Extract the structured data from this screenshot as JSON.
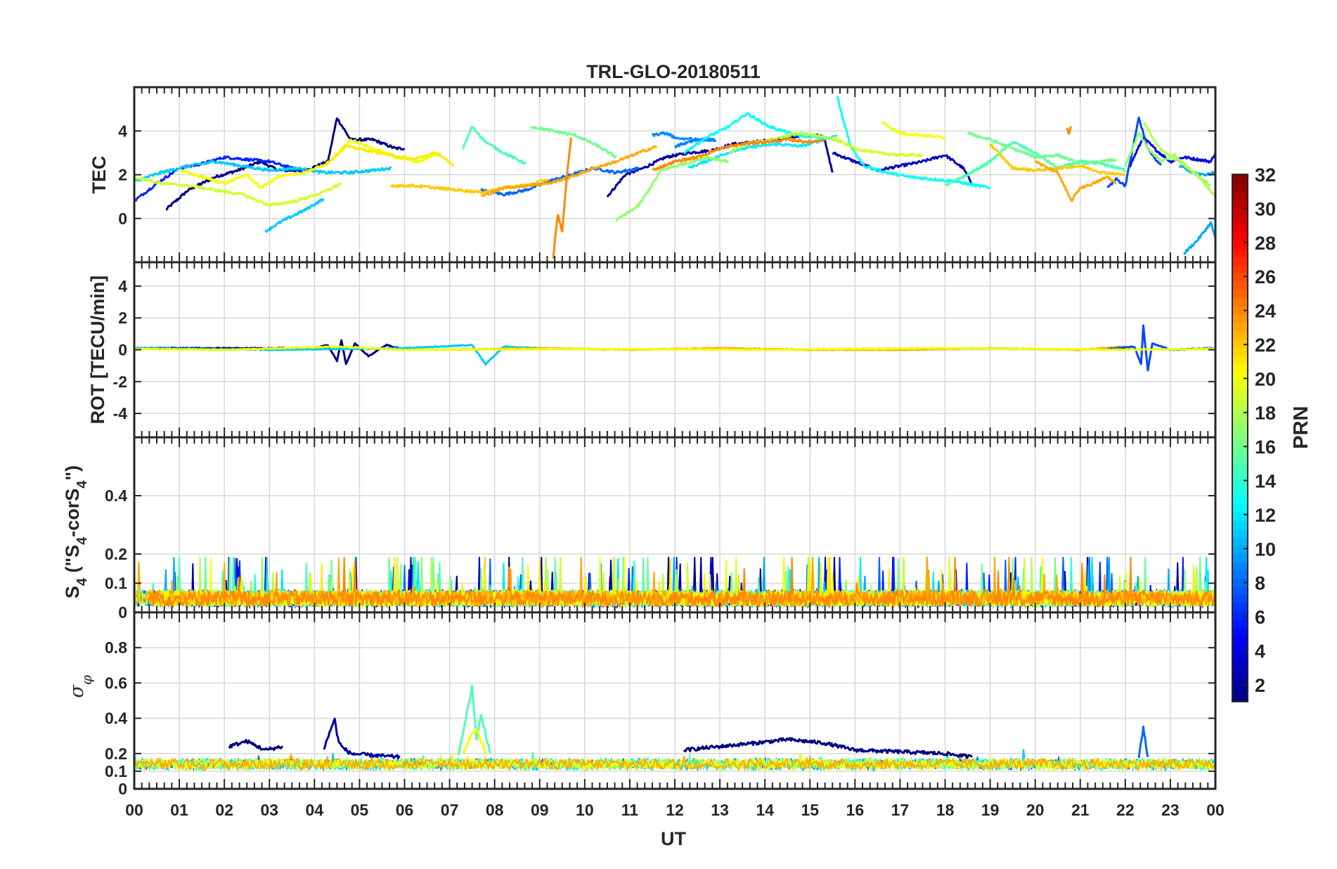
{
  "chart_data": {
    "type": "line",
    "title": "TRL-GLO-20180511",
    "xlabel": "UT",
    "x_ticks": [
      "00",
      "01",
      "02",
      "03",
      "04",
      "05",
      "06",
      "07",
      "08",
      "09",
      "10",
      "11",
      "12",
      "13",
      "14",
      "15",
      "16",
      "17",
      "18",
      "19",
      "20",
      "21",
      "22",
      "23",
      "00"
    ],
    "xlim_hours": [
      0,
      24
    ],
    "grid": true,
    "colorbar": {
      "label": "PRN",
      "colormap": "jet",
      "range": [
        1,
        32
      ],
      "ticks": [
        "2",
        "4",
        "6",
        "8",
        "10",
        "12",
        "14",
        "16",
        "18",
        "20",
        "22",
        "24",
        "26",
        "28",
        "30",
        "32"
      ]
    },
    "panels": [
      {
        "ylabel": "TEC",
        "ylim": [
          -2,
          6
        ],
        "yticks": [
          "0",
          "2",
          "4"
        ],
        "series": [
          {
            "prn": 1,
            "x": [
              0.7,
              1.2,
              1.8,
              2.3,
              2.8,
              3.2,
              3.8,
              4.3,
              4.5,
              4.8,
              5.3,
              5.8,
              6.0
            ],
            "y": [
              0.4,
              1.3,
              1.9,
              2.2,
              2.6,
              2.2,
              2.2,
              2.6,
              4.6,
              3.6,
              3.6,
              3.2,
              3.2
            ]
          },
          {
            "prn": 2,
            "x": [
              10.5,
              10.9,
              11.3,
              11.8,
              12.3,
              12.8,
              13.3,
              13.8,
              14.3,
              14.8,
              15.3,
              15.5
            ],
            "y": [
              1.0,
              2.0,
              2.3,
              2.8,
              3.0,
              3.1,
              3.4,
              3.5,
              3.6,
              3.8,
              3.8,
              2.1
            ]
          },
          {
            "prn": 3,
            "x": [
              15.5,
              16.0,
              16.5,
              17.0,
              17.5,
              18.0,
              18.4,
              18.6
            ],
            "y": [
              3.0,
              2.6,
              2.2,
              2.4,
              2.6,
              2.9,
              2.3,
              1.6
            ]
          },
          {
            "prn": 4,
            "x": [
              22.1,
              22.4,
              22.7,
              23.0,
              23.3,
              23.6,
              23.9,
              24.0
            ],
            "y": [
              2.4,
              3.7,
              3.1,
              2.6,
              2.8,
              2.7,
              2.6,
              3.0
            ]
          },
          {
            "prn": 6,
            "x": [
              0.0,
              0.5,
              1.0,
              1.5,
              2.0,
              2.5,
              3.0,
              3.5,
              3.8
            ],
            "y": [
              0.8,
              1.6,
              2.3,
              2.5,
              2.8,
              2.7,
              2.6,
              2.3,
              2.1
            ]
          },
          {
            "prn": 7,
            "x": [
              21.6,
              21.8,
              22.0,
              22.3,
              22.5,
              22.7,
              22.8
            ],
            "y": [
              1.4,
              1.8,
              1.5,
              4.6,
              3.2,
              2.6,
              2.5
            ]
          },
          {
            "prn": 8,
            "x": [
              7.7,
              8.2,
              8.7,
              9.2,
              9.7,
              10.2,
              10.7,
              11.2
            ],
            "y": [
              1.3,
              1.1,
              1.3,
              1.7,
              2.0,
              2.3,
              2.1,
              2.3
            ]
          },
          {
            "prn": 9,
            "x": [
              12.0,
              12.5,
              12.9,
              12.5,
              12.0,
              11.8,
              11.5
            ],
            "y": [
              3.3,
              3.6,
              3.6,
              3.6,
              3.7,
              3.9,
              3.8
            ]
          },
          {
            "prn": 10,
            "x": [
              23.2,
              23.5,
              23.8,
              24.0
            ],
            "y": [
              2.4,
              2.1,
              2.0,
              2.1
            ]
          },
          {
            "prn": 10,
            "x": [
              23.3,
              23.6,
              23.9,
              24.0
            ],
            "y": [
              -1.6,
              -1.0,
              -0.2,
              -0.9
            ]
          },
          {
            "prn": 11,
            "x": [
              0.0,
              0.6,
              1.2,
              1.8,
              2.4,
              3.0,
              3.6,
              4.2,
              4.8,
              5.3,
              5.7
            ],
            "y": [
              1.7,
              2.1,
              2.4,
              2.6,
              2.4,
              2.2,
              2.3,
              2.1,
              2.1,
              2.2,
              2.3
            ]
          },
          {
            "prn": 11,
            "x": [
              2.9,
              3.3,
              3.8,
              4.2
            ],
            "y": [
              -0.6,
              -0.1,
              0.4,
              0.9
            ]
          },
          {
            "prn": 12,
            "x": [
              12.3,
              12.8,
              13.3,
              13.8,
              14.3,
              14.8,
              15.3,
              15.6
            ],
            "y": [
              2.3,
              2.7,
              3.1,
              3.3,
              3.4,
              3.3,
              3.6,
              3.8
            ]
          },
          {
            "prn": 13,
            "x": [
              15.6,
              15.9,
              16.2,
              16.7,
              17.2,
              17.7,
              18.2,
              18.7,
              19.0
            ],
            "y": [
              5.6,
              3.3,
              2.4,
              2.1,
              1.9,
              1.8,
              1.7,
              1.5,
              1.4
            ]
          },
          {
            "prn": 13,
            "x": [
              12.2,
              12.7,
              13.2,
              13.6,
              14.1,
              14.7,
              15.3
            ],
            "y": [
              3.0,
              3.7,
              4.2,
              4.8,
              4.2,
              3.8,
              3.7
            ]
          },
          {
            "prn": 15,
            "x": [
              7.3,
              7.5,
              7.8,
              8.2,
              8.7
            ],
            "y": [
              3.2,
              4.2,
              3.5,
              3.0,
              2.5
            ]
          },
          {
            "prn": 15,
            "x": [
              18.0,
              18.5,
              19.0,
              19.5,
              20.0,
              20.5,
              21.0,
              21.5,
              22.0
            ],
            "y": [
              1.5,
              2.0,
              2.6,
              3.5,
              3.0,
              2.3,
              2.6,
              2.5,
              2.2
            ]
          },
          {
            "prn": 16,
            "x": [
              8.8,
              9.3,
              9.8,
              10.3,
              10.7
            ],
            "y": [
              4.2,
              4.0,
              3.8,
              3.3,
              2.8
            ]
          },
          {
            "prn": 16,
            "x": [
              18.5,
              19.0,
              19.5,
              20.0,
              20.5,
              21.0,
              21.5,
              21.8
            ],
            "y": [
              3.9,
              3.6,
              3.2,
              2.8,
              2.9,
              2.5,
              2.6,
              2.7
            ]
          },
          {
            "prn": 17,
            "x": [
              10.7,
              11.2,
              11.7,
              12.2,
              12.7,
              13.2
            ],
            "y": [
              -0.1,
              0.6,
              2.2,
              2.5,
              2.8,
              2.6
            ]
          },
          {
            "prn": 17,
            "x": [
              22.0,
              22.3,
              22.5,
              22.8,
              23.1,
              23.5,
              23.9
            ],
            "y": [
              2.4,
              3.9,
              3.2,
              2.6,
              2.9,
              2.1,
              1.5
            ]
          },
          {
            "prn": 18,
            "x": [
              13.2,
              13.7,
              14.2,
              14.7,
              15.2,
              15.7
            ],
            "y": [
              3.0,
              3.5,
              3.6,
              3.9,
              3.8,
              3.5
            ]
          },
          {
            "prn": 18,
            "x": [
              22.4,
              22.8,
              23.2,
              23.6,
              24.0
            ],
            "y": [
              4.4,
              3.1,
              2.6,
              2.0,
              1.0
            ]
          },
          {
            "prn": 19,
            "x": [
              0.0,
              0.6,
              1.2,
              1.8,
              2.4,
              3.0,
              3.6,
              4.2,
              4.6
            ],
            "y": [
              1.9,
              1.6,
              1.5,
              1.3,
              1.1,
              0.6,
              0.8,
              1.2,
              1.6
            ]
          },
          {
            "prn": 19,
            "x": [
              15.5,
              16.0,
              16.5,
              17.0,
              17.5
            ],
            "y": [
              3.7,
              3.2,
              3.0,
              2.9,
              2.9
            ]
          },
          {
            "prn": 20,
            "x": [
              1.0,
              1.5,
              2.0,
              2.5,
              2.8,
              3.2,
              3.8,
              4.3,
              4.8,
              5.3,
              5.8,
              6.3,
              6.8
            ],
            "y": [
              2.2,
              1.9,
              1.6,
              2.0,
              1.4,
              1.9,
              2.1,
              2.5,
              3.6,
              3.2,
              2.8,
              2.6,
              3.0
            ]
          },
          {
            "prn": 20,
            "x": [
              16.6,
              17.0,
              17.5,
              18.0
            ],
            "y": [
              4.4,
              3.9,
              3.8,
              3.7
            ]
          },
          {
            "prn": 21,
            "x": [
              4.2,
              4.7,
              5.2,
              5.7,
              6.2,
              6.7,
              7.1
            ],
            "y": [
              2.4,
              3.3,
              3.1,
              2.9,
              2.7,
              3.0,
              2.4
            ]
          },
          {
            "prn": 22,
            "x": [
              5.7,
              6.2,
              6.7,
              7.2,
              7.7,
              8.2,
              8.7,
              9.2
            ],
            "y": [
              1.5,
              1.5,
              1.4,
              1.3,
              1.2,
              1.4,
              1.5,
              1.8
            ]
          },
          {
            "prn": 22,
            "x": [
              19.0,
              19.5,
              20.0,
              20.5,
              21.0,
              21.5,
              22.0
            ],
            "y": [
              3.4,
              2.3,
              2.2,
              2.3,
              2.4,
              2.1,
              2.0
            ]
          },
          {
            "prn": 23,
            "x": [
              7.7,
              8.2,
              8.7,
              9.2,
              9.7,
              10.2,
              10.7,
              11.2,
              11.6
            ],
            "y": [
              1.0,
              1.4,
              1.5,
              1.6,
              1.9,
              2.3,
              2.6,
              3.0,
              3.3
            ]
          },
          {
            "prn": 23,
            "x": [
              20.0,
              20.5,
              20.8,
              21.0,
              21.3,
              21.6,
              21.8
            ],
            "y": [
              2.6,
              2.1,
              0.8,
              1.4,
              1.6,
              1.9,
              1.6
            ]
          },
          {
            "prn": 24,
            "x": [
              11.5,
              12.0,
              12.5,
              13.0,
              13.5,
              14.0,
              14.5,
              15.0,
              15.3
            ],
            "y": [
              2.2,
              2.6,
              2.8,
              3.2,
              3.4,
              3.5,
              3.6,
              3.5,
              3.6
            ]
          },
          {
            "prn": 24,
            "x": [
              9.3,
              9.4,
              9.5,
              9.6,
              9.7
            ],
            "y": [
              -1.8,
              0.2,
              -0.6,
              1.9,
              3.7
            ]
          },
          {
            "prn": 24,
            "x": [
              20.7,
              20.75,
              20.8
            ],
            "y": [
              4.1,
              3.9,
              4.2
            ]
          }
        ]
      },
      {
        "ylabel": "ROT [TECU/min]",
        "ylim": [
          -5.5,
          5.5
        ],
        "yticks": [
          "-4",
          "-2",
          "0",
          "2",
          "4"
        ],
        "series": [
          {
            "prn": 1,
            "x": [
              0.0,
              4.0,
              4.3,
              4.5,
              4.6,
              4.7,
              4.9,
              5.2,
              5.6,
              6.0
            ],
            "y": [
              0.1,
              0.1,
              0.3,
              -0.7,
              0.6,
              -0.9,
              0.4,
              -0.4,
              0.3,
              0.0
            ]
          },
          {
            "prn": 11,
            "x": [
              0.0,
              3.0,
              6.0,
              7.5,
              7.8,
              8.2,
              9.0
            ],
            "y": [
              0.1,
              0.0,
              0.1,
              0.3,
              -0.9,
              0.2,
              0.1
            ]
          },
          {
            "prn": 23,
            "x": [
              7.0,
              9.0,
              11.0,
              13.0,
              15.0,
              17.0,
              19.0,
              21.0,
              22.0
            ],
            "y": [
              0.0,
              0.1,
              0.0,
              0.1,
              0.0,
              0.0,
              0.1,
              0.0,
              0.2
            ]
          },
          {
            "prn": 7,
            "x": [
              21.5,
              22.2,
              22.35,
              22.4,
              22.5,
              22.6,
              23.0,
              24.0
            ],
            "y": [
              0.0,
              0.2,
              -0.9,
              1.5,
              -1.3,
              0.4,
              0.0,
              0.1
            ]
          },
          {
            "prn": 20,
            "x": [
              0.0,
              2.0,
              4.5,
              6.0,
              10.0,
              14.0,
              18.0,
              22.0,
              24.0
            ],
            "y": [
              0.05,
              0.0,
              0.2,
              0.0,
              0.05,
              0.0,
              0.1,
              0.0,
              0.05
            ]
          }
        ]
      },
      {
        "ylabel": "S4 (\"S4-corS4\")",
        "ylim": [
          0,
          0.6
        ],
        "yticks": [
          "0",
          "0.1",
          "0.2",
          "0.4"
        ],
        "band_max": 0.19,
        "band_typ": 0.08
      },
      {
        "ylabel": "σφ",
        "ylim": [
          0,
          1.0
        ],
        "yticks": [
          "0",
          "0.1",
          "0.2",
          "0.4",
          "0.6",
          "0.8"
        ],
        "series": [
          {
            "prn": 1,
            "x": [
              2.1,
              2.5,
              2.9,
              3.3
            ],
            "y": [
              0.24,
              0.27,
              0.22,
              0.24
            ]
          },
          {
            "prn": 2,
            "x": [
              4.2,
              4.45,
              4.5,
              4.6,
              4.8,
              5.3,
              5.9
            ],
            "y": [
              0.22,
              0.4,
              0.3,
              0.24,
              0.2,
              0.19,
              0.18
            ]
          },
          {
            "prn": 1,
            "x": [
              12.2,
              13.0,
              13.8,
              14.5,
              15.3,
              16.0,
              17.0,
              18.0,
              18.6
            ],
            "y": [
              0.22,
              0.24,
              0.26,
              0.28,
              0.26,
              0.22,
              0.21,
              0.2,
              0.18
            ]
          },
          {
            "prn": 15,
            "x": [
              7.2,
              7.4,
              7.5,
              7.6,
              7.7,
              7.9
            ],
            "y": [
              0.2,
              0.45,
              0.58,
              0.28,
              0.42,
              0.2
            ]
          },
          {
            "prn": 20,
            "x": [
              7.3,
              7.5,
              7.6,
              7.8
            ],
            "y": [
              0.2,
              0.32,
              0.34,
              0.2
            ]
          },
          {
            "prn": 8,
            "x": [
              22.3,
              22.4,
              22.5
            ],
            "y": [
              0.18,
              0.35,
              0.18
            ]
          }
        ]
      }
    ]
  }
}
